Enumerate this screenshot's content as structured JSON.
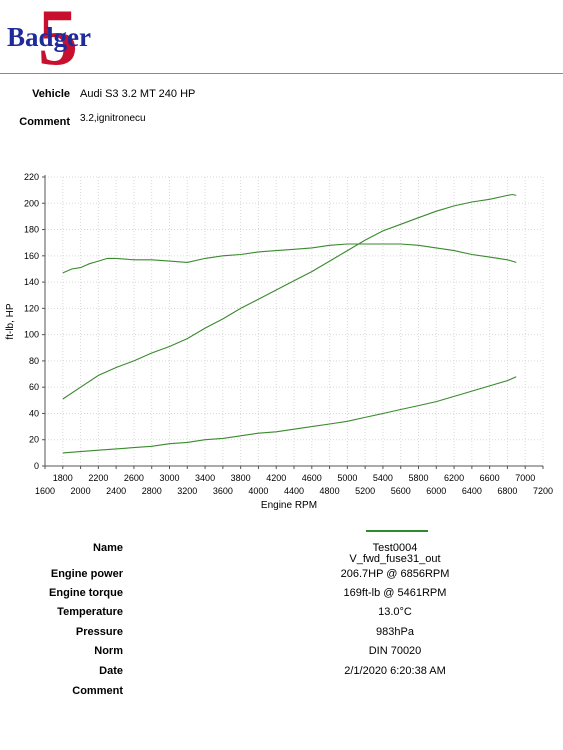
{
  "logo": {
    "text": "Badger",
    "number": "5"
  },
  "header": {
    "vehicle_label": "Vehicle",
    "vehicle_value": "Audi S3 3.2 MT 240 HP",
    "comment_label": "Comment",
    "comment_value": "3.2,ignitronecu"
  },
  "chart_data": {
    "type": "line",
    "xlabel": "Engine RPM",
    "ylabel": "ft-lb, HP",
    "xlim": [
      1600,
      7200
    ],
    "ylim": [
      0,
      220
    ],
    "x_ticks": [
      1600,
      1800,
      2000,
      2200,
      2400,
      2600,
      2800,
      3000,
      3200,
      3400,
      3600,
      3800,
      4000,
      4200,
      4400,
      4600,
      4800,
      5000,
      5200,
      5400,
      5600,
      5800,
      6000,
      6200,
      6400,
      6600,
      6800,
      7000,
      7200
    ],
    "y_ticks": [
      0,
      20,
      40,
      60,
      80,
      100,
      120,
      140,
      160,
      180,
      200,
      220
    ],
    "grid": true,
    "line_color": "#3a8a2e",
    "series": [
      {
        "x": [
          1800,
          1900,
          2000,
          2100,
          2200,
          2300,
          2400,
          2600,
          2800,
          3000,
          3200,
          3400,
          3600,
          3800,
          4000,
          4200,
          4400,
          4600,
          4800,
          5000,
          5200,
          5461,
          5600,
          5800,
          6000,
          6200,
          6400,
          6600,
          6800,
          6900
        ],
        "values": [
          147,
          150,
          151,
          154,
          156,
          158,
          158,
          157,
          157,
          156,
          155,
          158,
          160,
          161,
          163,
          164,
          165,
          166,
          168,
          169,
          169,
          169,
          169,
          168,
          166,
          164,
          161,
          159,
          157,
          155
        ]
      },
      {
        "x": [
          1800,
          2000,
          2200,
          2400,
          2600,
          2800,
          3000,
          3200,
          3400,
          3600,
          3800,
          4000,
          4200,
          4400,
          4600,
          4800,
          5000,
          5200,
          5400,
          5600,
          5800,
          6000,
          6200,
          6400,
          6600,
          6800,
          6856,
          6900
        ],
        "values": [
          51,
          60,
          69,
          75,
          80,
          86,
          91,
          97,
          105,
          112,
          120,
          127,
          134,
          141,
          148,
          156,
          164,
          172,
          179,
          184,
          189,
          194,
          198,
          201,
          203,
          206,
          206.7,
          206
        ]
      },
      {
        "x": [
          1800,
          2000,
          2200,
          2400,
          2600,
          2800,
          3000,
          3200,
          3400,
          3600,
          3800,
          4000,
          4200,
          4400,
          4600,
          4800,
          5000,
          5200,
          5400,
          5600,
          5800,
          6000,
          6200,
          6400,
          6600,
          6800,
          6900
        ],
        "values": [
          10,
          11,
          12,
          13,
          14,
          15,
          17,
          18,
          20,
          21,
          23,
          25,
          26,
          28,
          30,
          32,
          34,
          37,
          40,
          43,
          46,
          49,
          53,
          57,
          61,
          65,
          68
        ]
      }
    ]
  },
  "info": {
    "name_label": "Name",
    "name_value_1": "Test0004",
    "name_value_2": "V_fwd_fuse31_out",
    "power_label": "Engine power",
    "power_value": "206.7HP @  6856RPM",
    "torque_label": "Engine torque",
    "torque_value": "169ft-lb @ 5461RPM",
    "temp_label": "Temperature",
    "temp_value": "13.0°C",
    "pressure_label": "Pressure",
    "pressure_value": "983hPa",
    "norm_label": "Norm",
    "norm_value": "DIN 70020",
    "date_label": "Date",
    "date_value": "2/1/2020 6:20:38 AM",
    "comment_label": "Comment"
  }
}
